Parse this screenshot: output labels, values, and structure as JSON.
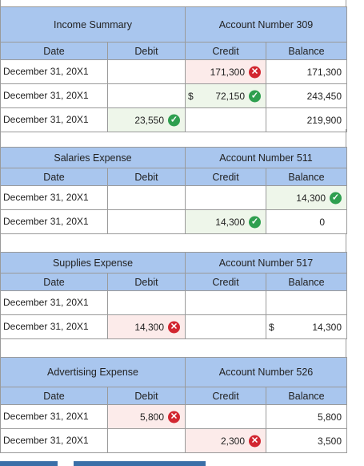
{
  "headers": {
    "date": "Date",
    "debit": "Debit",
    "credit": "Credit",
    "balance": "Balance"
  },
  "accounts": [
    {
      "name": "Income Summary",
      "number": "Account Number 309",
      "rows": [
        {
          "date": "December 31, 20X1",
          "debit": "",
          "credit": "171,300",
          "credit_status": "incorrect",
          "credit_dollar": "",
          "balance": "171,300",
          "balance_status": "",
          "balance_dollar": "",
          "debit_status": ""
        },
        {
          "date": "December 31, 20X1",
          "debit": "",
          "credit": "72,150",
          "credit_status": "correct",
          "credit_dollar": "$",
          "balance": "243,450",
          "balance_status": "",
          "balance_dollar": "",
          "debit_status": ""
        },
        {
          "date": "December 31, 20X1",
          "debit": "23,550",
          "debit_status": "correct",
          "credit": "",
          "credit_status": "",
          "credit_dollar": "",
          "balance": "219,900",
          "balance_status": "",
          "balance_dollar": ""
        }
      ]
    },
    {
      "name": "Salaries Expense",
      "number": "Account Number 511",
      "rows": [
        {
          "date": "December 31, 20X1",
          "debit": "",
          "debit_status": "",
          "credit": "",
          "credit_status": "",
          "credit_dollar": "",
          "balance": "14,300",
          "balance_status": "correct",
          "balance_dollar": ""
        },
        {
          "date": "December 31, 20X1",
          "debit": "",
          "debit_status": "",
          "credit": "14,300",
          "credit_status": "correct",
          "credit_dollar": "",
          "balance": "0",
          "balance_status": "",
          "balance_dollar": ""
        }
      ]
    },
    {
      "name": "Supplies Expense",
      "number": "Account Number 517",
      "rows": [
        {
          "date": "December 31, 20X1",
          "debit": "",
          "debit_status": "",
          "credit": "",
          "credit_status": "",
          "credit_dollar": "",
          "balance": "",
          "balance_status": "",
          "balance_dollar": ""
        },
        {
          "date": "December 31, 20X1",
          "debit": "14,300",
          "debit_status": "incorrect",
          "credit": "",
          "credit_status": "",
          "credit_dollar": "",
          "balance": "14,300",
          "balance_status": "",
          "balance_dollar": "$"
        }
      ]
    },
    {
      "name": "Advertising Expense",
      "number": "Account Number 526",
      "rows": [
        {
          "date": "December 31, 20X1",
          "debit": "5,800",
          "debit_status": "incorrect",
          "credit": "",
          "credit_status": "",
          "credit_dollar": "",
          "balance": "5,800",
          "balance_status": "",
          "balance_dollar": ""
        },
        {
          "date": "December 31, 20X1",
          "debit": "",
          "debit_status": "",
          "credit": "2,300",
          "credit_status": "incorrect",
          "credit_dollar": "",
          "balance": "3,500",
          "balance_status": "",
          "balance_dollar": ""
        }
      ]
    }
  ],
  "colors": {
    "header_bg": "#a9c6ee",
    "correct": "#2e9f4f",
    "incorrect": "#d22630"
  }
}
